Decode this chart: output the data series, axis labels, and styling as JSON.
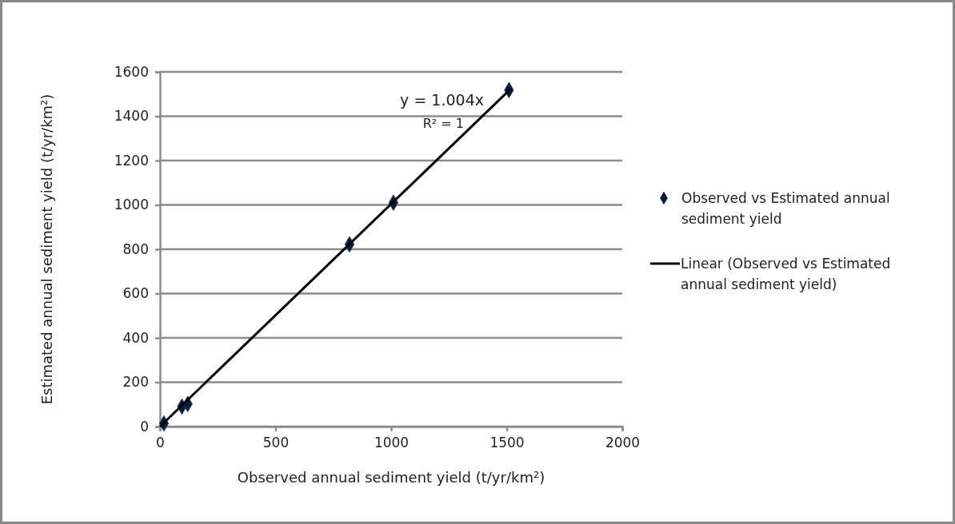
{
  "chart_data": {
    "type": "scatter",
    "xlabel": "Observed annual sediment yield (t/yr/km²)",
    "ylabel": "Estimated annual sediment yield (t/yr/km²)",
    "xlim": [
      0,
      2000
    ],
    "xticks": [
      0,
      500,
      1000,
      1500,
      2000
    ],
    "ylim": [
      0,
      1600
    ],
    "yticks": [
      0,
      200,
      400,
      600,
      800,
      1000,
      1200,
      1400,
      1600
    ],
    "grid": "y",
    "legend": "right",
    "annotations": [
      "y = 1.004x",
      "R² = 1"
    ],
    "series": [
      {
        "name": "Observed vs Estimated annual sediment yield",
        "color": "#0a1a33",
        "marker": "diamond",
        "x": [
          17,
          95,
          120,
          820,
          1010,
          1510
        ],
        "values": [
          14,
          90,
          102,
          822,
          1010,
          1518
        ]
      },
      {
        "name": "Linear (Observed vs Estimated annual sediment yield)",
        "type": "line",
        "color": "#000000",
        "x": [
          0,
          1515
        ],
        "values": [
          0,
          1521
        ]
      }
    ]
  }
}
